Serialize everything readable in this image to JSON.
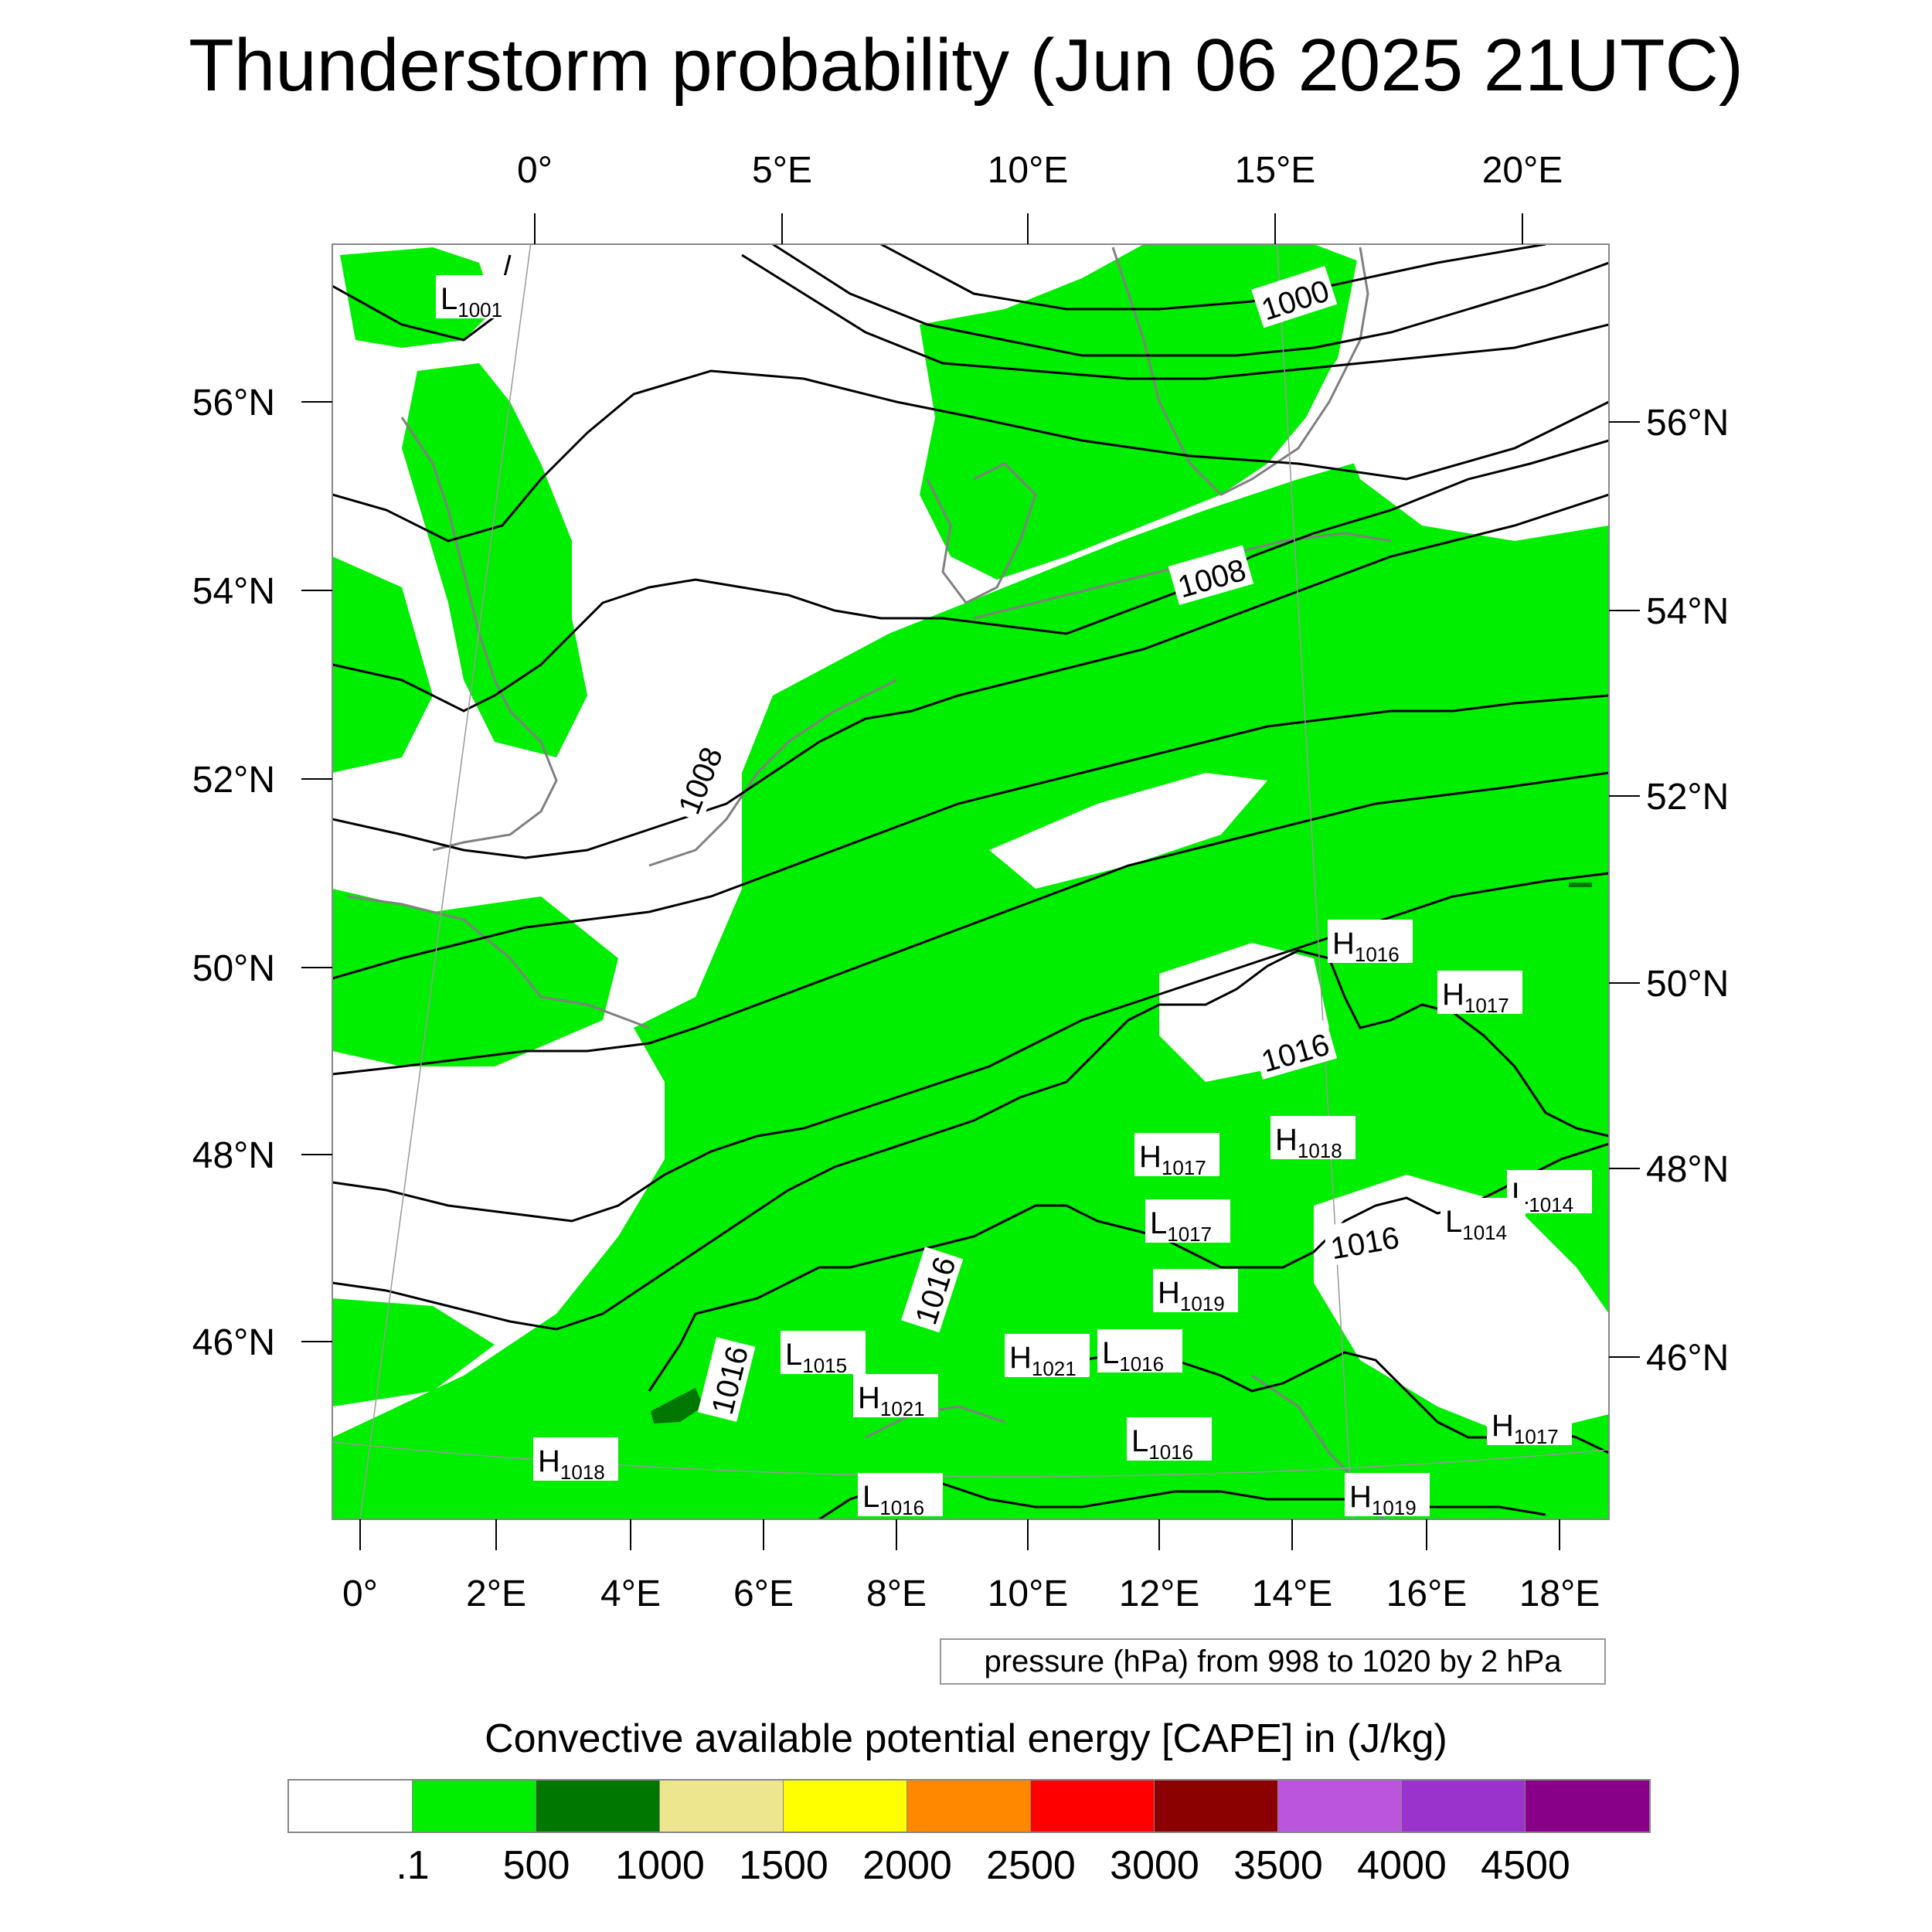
{
  "title": "Thunderstorm probability (Jun 06 2025 21UTC)",
  "axes": {
    "top_lon_labels": [
      "0°",
      "5°E",
      "10°E",
      "15°E",
      "20°E"
    ],
    "bottom_lon_labels": [
      "0°",
      "2°E",
      "4°E",
      "6°E",
      "8°E",
      "10°E",
      "12°E",
      "14°E",
      "16°E",
      "18°E"
    ],
    "left_lat_labels": [
      "56°N",
      "54°N",
      "52°N",
      "50°N",
      "48°N",
      "46°N"
    ],
    "right_lat_labels": [
      "56°N",
      "54°N",
      "52°N",
      "50°N",
      "48°N",
      "46°N"
    ]
  },
  "pressure_note": "pressure (hPa) from 998 to 1020 by 2 hPa",
  "isobar_labels": [
    "1000",
    "1008",
    "1008",
    "1016",
    "1016",
    "1016",
    "1016"
  ],
  "pressure_centers": [
    {
      "type": "L",
      "value": "1001"
    },
    {
      "type": "H",
      "value": "1016"
    },
    {
      "type": "H",
      "value": "1017"
    },
    {
      "type": "H",
      "value": "1017"
    },
    {
      "type": "H",
      "value": "1018"
    },
    {
      "type": "L",
      "value": "1017"
    },
    {
      "type": "L",
      "value": "1014"
    },
    {
      "type": "L",
      "value": "1014"
    },
    {
      "type": "H",
      "value": "1019"
    },
    {
      "type": "L",
      "value": "1015"
    },
    {
      "type": "H",
      "value": "1021"
    },
    {
      "type": "H",
      "value": "1021"
    },
    {
      "type": "L",
      "value": "1016"
    },
    {
      "type": "L",
      "value": "1016"
    },
    {
      "type": "L",
      "value": "1016"
    },
    {
      "type": "H",
      "value": "1018"
    },
    {
      "type": "H",
      "value": "1019"
    },
    {
      "type": "H",
      "value": "1017"
    }
  ],
  "legend": {
    "title": "Convective available potential energy [CAPE] in (J/kg)",
    "colors": [
      "#ffffff",
      "#00ee00",
      "#007700",
      "#eee58f",
      "#ffff00",
      "#ff8800",
      "#ff0000",
      "#8b0000",
      "#bb55dd",
      "#9933cc",
      "#880088"
    ],
    "labels": [
      ".1",
      "500",
      "1000",
      "1500",
      "2000",
      "2500",
      "3000",
      "3500",
      "4000",
      "4500"
    ]
  },
  "colors": {
    "cape_low": "#00ee00",
    "cape_mid": "#007700",
    "coastline": "#808080",
    "isobar": "#000000"
  }
}
